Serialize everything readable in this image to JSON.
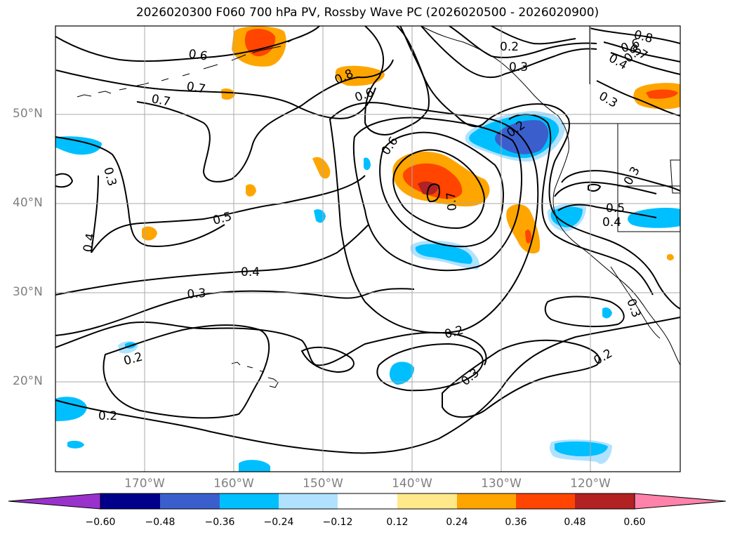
{
  "title": "2026020300 F060 700 hPa PV, Rossby Wave PC (2026020500 - 2026020900)",
  "map": {
    "lat_labels": [
      "50°N",
      "40°N",
      "30°N",
      "20°N"
    ],
    "lon_labels": [
      "170°W",
      "160°W",
      "150°W",
      "140°W",
      "130°W",
      "120°W"
    ],
    "contour_labels": [
      "0.6",
      "0.7",
      "0.7",
      "0.8",
      "0.6",
      "0.6",
      "0.7",
      "0.2",
      "0.3",
      "0.8",
      "0.7",
      "0.4",
      "0.5",
      "0.6",
      "0.3",
      "0.2",
      "0.3",
      "0.5",
      "0.4",
      "0.5",
      "0.4",
      "0.4",
      "0.3",
      "0.2",
      "0.2",
      "0.2",
      "0.3",
      "0.2",
      "0.3",
      "0.3"
    ]
  },
  "colorbar": {
    "tick_labels": [
      "−0.60",
      "−0.48",
      "−0.36",
      "−0.24",
      "−0.12",
      "0.12",
      "0.24",
      "0.36",
      "0.48",
      "0.60"
    ],
    "colors": [
      "#9932cc",
      "#00008b",
      "#3a5fcd",
      "#00bfff",
      "#b0e2ff",
      "#ffffff",
      "#ffe98a",
      "#ffa500",
      "#ff4500",
      "#b22222",
      "#ff82ab"
    ]
  }
}
